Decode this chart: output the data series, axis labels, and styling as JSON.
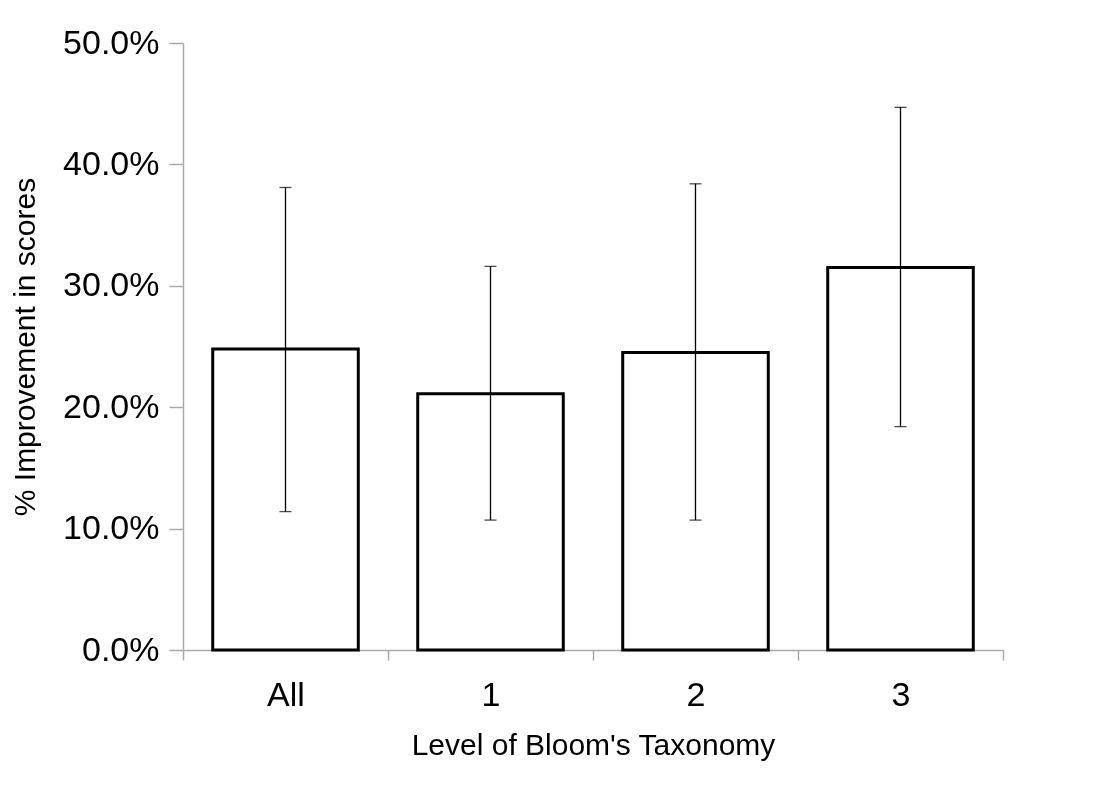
{
  "chart_data": {
    "type": "bar",
    "xlabel": "Level of Bloom's Taxonomy",
    "ylabel": "% Improvement in scores",
    "categories": [
      "All",
      "1",
      "2",
      "3"
    ],
    "values": [
      24.8,
      21.1,
      24.5,
      31.5
    ],
    "errors": [
      [
        11.4,
        38.1
      ],
      [
        10.7,
        31.6
      ],
      [
        10.7,
        38.4
      ],
      [
        18.4,
        44.7
      ]
    ],
    "color": "#ffffff",
    "ylim": [
      0,
      50
    ],
    "yticks": [
      {
        "value": 0,
        "label": "0.0%"
      },
      {
        "value": 10,
        "label": "10.0%"
      },
      {
        "value": 20,
        "label": "20.0%"
      },
      {
        "value": 30,
        "label": "30.0%"
      },
      {
        "value": 40,
        "label": "40.0%"
      },
      {
        "value": 50,
        "label": "50.0%"
      }
    ],
    "grid": false
  }
}
